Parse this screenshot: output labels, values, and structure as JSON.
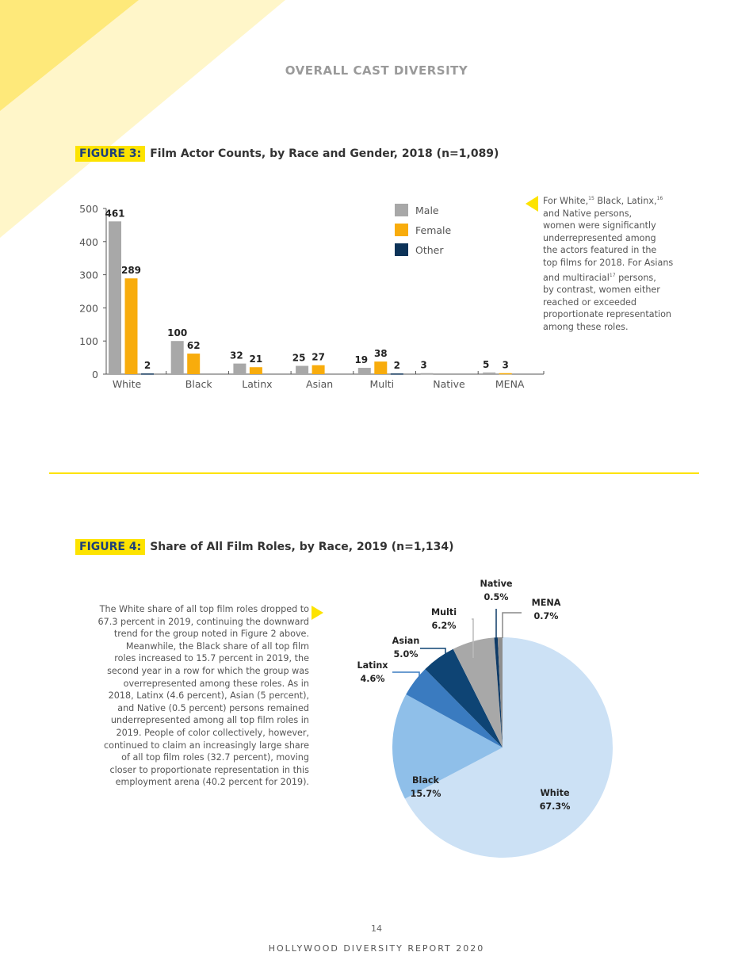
{
  "section_title": "OVERALL CAST DIVERSITY",
  "colors": {
    "accent": "#fde300",
    "male": "#a8a8a8",
    "female": "#f8ac0c",
    "other": "#0d3358"
  },
  "figure3": {
    "tag": "FIGURE 3:",
    "title": "Film Actor Counts, by Race and Gender, 2018  (n=1,089)"
  },
  "figure4": {
    "tag": "FIGURE 4:",
    "title": "Share of All Film Roles, by Race, 2019 (n=1,134)"
  },
  "note3": [
    [
      {
        "t": "For White,"
      },
      {
        "s": "15"
      },
      {
        "t": "  Black, Latinx,"
      },
      {
        "s": "16"
      }
    ],
    [
      {
        "t": "and Native persons,"
      }
    ],
    [
      {
        "t": "women were significantly"
      }
    ],
    [
      {
        "t": "underrepresented among"
      }
    ],
    [
      {
        "t": "the actors featured in the"
      }
    ],
    [
      {
        "t": "top films for 2018.  For Asians"
      }
    ],
    [
      {
        "t": "and multiracial"
      },
      {
        "s": "17"
      },
      {
        "t": "  persons,"
      }
    ],
    [
      {
        "t": "by contrast, women either"
      }
    ],
    [
      {
        "t": "reached or exceeded"
      }
    ],
    [
      {
        "t": "proportionate representation"
      }
    ],
    [
      {
        "t": "among these roles."
      }
    ]
  ],
  "note4": [
    "The White share of all top film roles dropped to",
    "67.3 percent in 2019, continuing the downward",
    "trend for the group noted in Figure 2 above.",
    "Meanwhile, the Black share of all top film",
    "roles increased to 15.7 percent in 2019, the",
    "second year in a row for which the group was",
    "overrepresented among these roles.  As in",
    "2018, Latinx (4.6 percent), Asian (5 percent),",
    "and Native (0.5 percent) persons remained",
    "underrepresented among all top film roles in",
    "2019.  People of color collectively, however,",
    "continued to claim an increasingly large share",
    "of all top film roles (32.7 percent), moving",
    "closer to proportionate representation in this",
    "employment arena (40.2 percent for 2019)."
  ],
  "chart_data": [
    {
      "type": "bar",
      "title": "Film Actor Counts, by Race and Gender, 2018  (n=1,089)",
      "categories": [
        "White",
        "Black",
        "Latinx",
        "Asian",
        "Multi",
        "Native",
        "MENA"
      ],
      "series": [
        {
          "name": "Male",
          "color": "#a8a8a8",
          "values": [
            461,
            100,
            32,
            25,
            19,
            3,
            5
          ]
        },
        {
          "name": "Female",
          "color": "#f8ac0c",
          "values": [
            289,
            62,
            21,
            27,
            38,
            null,
            3
          ]
        },
        {
          "name": "Other",
          "color": "#0d3358",
          "values": [
            2,
            null,
            null,
            null,
            2,
            null,
            null
          ]
        }
      ],
      "yticks": [
        0,
        100,
        200,
        300,
        400,
        500
      ],
      "ylim": [
        0,
        500
      ],
      "legend": "top-right",
      "grid": false
    },
    {
      "type": "pie",
      "title": "Share of All Film Roles, by Race, 2019 (n=1,134)",
      "slices": [
        {
          "label": "White",
          "value": 67.3,
          "text": "67.3%",
          "color": "#cce1f5"
        },
        {
          "label": "Black",
          "value": 15.7,
          "text": "15.7%",
          "color": "#8fbfe9"
        },
        {
          "label": "Latinx",
          "value": 4.6,
          "text": "4.6%",
          "color": "#3a7bc0"
        },
        {
          "label": "Asian",
          "value": 5.0,
          "text": "5.0%",
          "color": "#0e4474"
        },
        {
          "label": "Multi",
          "value": 6.2,
          "text": "6.2%",
          "color": "#a8a8a8"
        },
        {
          "label": "Native",
          "value": 0.5,
          "text": "0.5%",
          "color": "#0e3a66"
        },
        {
          "label": "MENA",
          "value": 0.7,
          "text": "0.7%",
          "color": "#8e8e8e"
        }
      ]
    }
  ],
  "footer": {
    "page": "14",
    "report": "HOLLYWOOD DIVERSITY REPORT 2020"
  }
}
